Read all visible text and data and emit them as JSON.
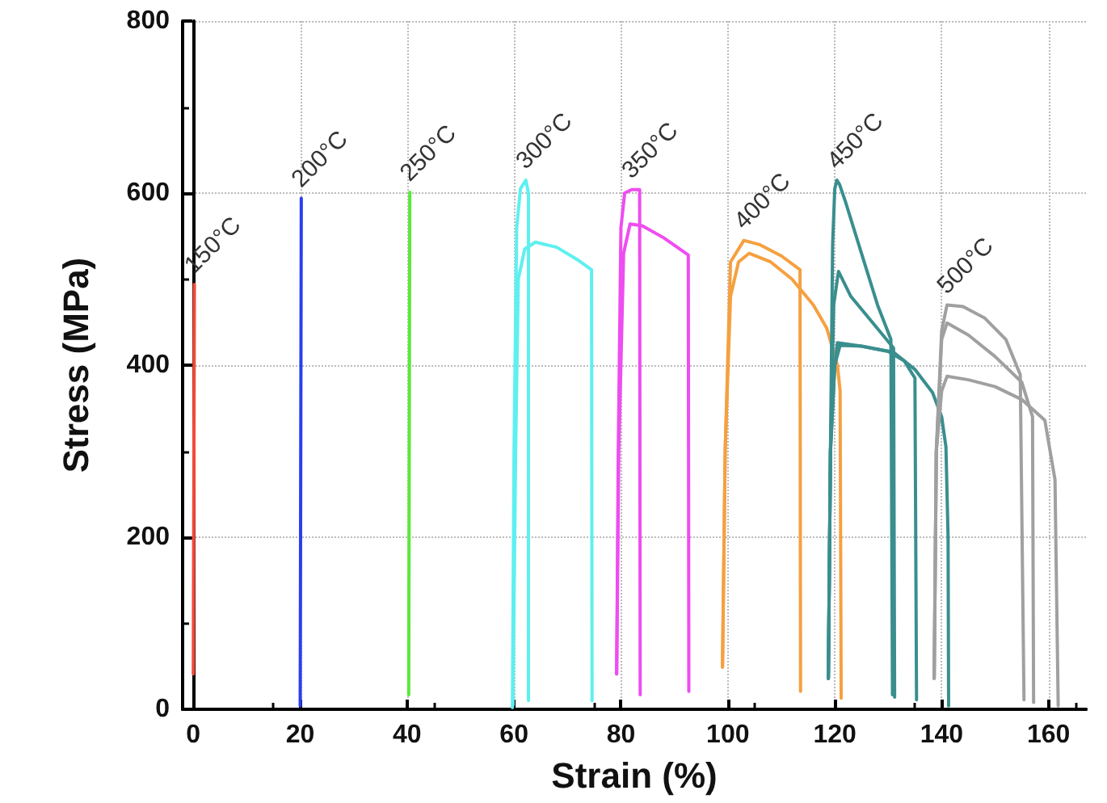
{
  "chart_data": {
    "type": "line",
    "xlabel": "Strain (%)",
    "ylabel": "Stress (MPa)",
    "xlim": [
      -2,
      167
    ],
    "ylim": [
      0,
      800
    ],
    "xticks": [
      0,
      20,
      40,
      60,
      80,
      100,
      120,
      140,
      160
    ],
    "yticks": [
      0,
      200,
      400,
      600,
      800
    ],
    "grid": true,
    "marker": "none",
    "line_style": "solid",
    "series": [
      {
        "color": "#f44a3a",
        "x": [
          0,
          0.2
        ],
        "values": [
          41,
          494
        ]
      },
      {
        "color": "#2a3ef0",
        "x": [
          20,
          20.2
        ],
        "values": [
          4,
          594
        ]
      },
      {
        "color": "#5ce83a",
        "x": [
          40.3,
          40.5
        ],
        "values": [
          17,
          601
        ]
      },
      {
        "color": "#5ef0f0",
        "x": [
          59.7,
          60,
          60.5,
          61.2,
          62.2,
          62.7,
          62.7
        ],
        "values": [
          2,
          300,
          560,
          605,
          615,
          600,
          10
        ]
      },
      {
        "color": "#5ef0f0",
        "x": [
          59.8,
          60.3,
          60.8,
          62,
          64,
          68,
          72,
          74.5,
          74.6
        ],
        "values": [
          5,
          300,
          500,
          535,
          543,
          537,
          522,
          511,
          10
        ]
      },
      {
        "color": "#ee4df0",
        "x": [
          79.2,
          79.5,
          80,
          80.7,
          82,
          83.5,
          83.6
        ],
        "values": [
          41,
          300,
          560,
          600,
          604,
          604,
          17
        ]
      },
      {
        "color": "#ee4df0",
        "x": [
          79.2,
          79.6,
          80.5,
          81.7,
          84,
          88,
          92.6,
          92.7
        ],
        "values": [
          41,
          300,
          530,
          564,
          562,
          548,
          528,
          21
        ]
      },
      {
        "color": "#f5a040",
        "x": [
          99,
          99.5,
          100.5,
          103,
          106,
          110,
          113.5,
          113.6
        ],
        "values": [
          49,
          300,
          520,
          545,
          540,
          527,
          511,
          21
        ]
      },
      {
        "color": "#f5a040",
        "x": [
          99,
          99.5,
          100.5,
          102,
          104,
          108,
          112,
          116,
          118.5,
          120.5,
          121,
          121.2
        ],
        "values": [
          49,
          300,
          480,
          520,
          530,
          520,
          500,
          470,
          443,
          400,
          370,
          13
        ]
      },
      {
        "color": "#3a8e8e",
        "x": [
          118.8,
          119.2,
          119.6,
          120,
          120.4,
          120.9,
          122,
          125,
          128,
          130.5,
          130.8
        ],
        "values": [
          36,
          300,
          540,
          605,
          615,
          610,
          590,
          530,
          470,
          430,
          17
        ]
      },
      {
        "color": "#3a8e8e",
        "x": [
          118.8,
          119.2,
          119.8,
          120.7,
          123,
          127,
          131,
          131.2
        ],
        "values": [
          36,
          300,
          470,
          509,
          480,
          450,
          420,
          14
        ]
      },
      {
        "color": "#3a8e8e",
        "x": [
          118.8,
          119.2,
          120,
          120.5,
          125,
          131,
          135,
          138.3,
          140,
          140.8,
          141.2,
          141.3
        ],
        "values": [
          36,
          300,
          400,
          426,
          422,
          415,
          395,
          368,
          340,
          305,
          200,
          4
        ]
      },
      {
        "color": "#3a8e8e",
        "x": [
          118.8,
          119.2,
          120,
          121,
          125,
          130,
          133,
          135,
          135.3
        ],
        "values": [
          36,
          300,
          400,
          423,
          422,
          416,
          405,
          385,
          11
        ]
      },
      {
        "color": "#a0a0a0",
        "x": [
          138.6,
          139,
          140,
          141,
          144,
          148,
          152,
          154.7,
          155.4
        ],
        "values": [
          36,
          300,
          440,
          470,
          468,
          455,
          430,
          389,
          11
        ]
      },
      {
        "color": "#a0a0a0",
        "x": [
          138.6,
          139,
          140,
          141,
          145,
          150,
          155,
          157,
          157.2
        ],
        "values": [
          36,
          300,
          430,
          449,
          435,
          410,
          380,
          340,
          8
        ]
      },
      {
        "color": "#a0a0a0",
        "x": [
          138.6,
          139,
          140,
          141,
          145,
          150,
          155,
          159.3,
          161.2,
          161.8
        ],
        "values": [
          36,
          300,
          370,
          387,
          383,
          375,
          360,
          336,
          267,
          4
        ]
      }
    ],
    "annotations": [
      {
        "text": "150°C",
        "x": 0.2,
        "y": 494
      },
      {
        "text": "200°C",
        "x": 20.2,
        "y": 594
      },
      {
        "text": "250°C",
        "x": 40.5,
        "y": 601
      },
      {
        "text": "300°C",
        "x": 62.2,
        "y": 615
      },
      {
        "text": "350°C",
        "x": 82,
        "y": 604
      },
      {
        "text": "400°C",
        "x": 103,
        "y": 545
      },
      {
        "text": "450°C",
        "x": 120.4,
        "y": 615
      },
      {
        "text": "500°C",
        "x": 141,
        "y": 470
      }
    ]
  }
}
